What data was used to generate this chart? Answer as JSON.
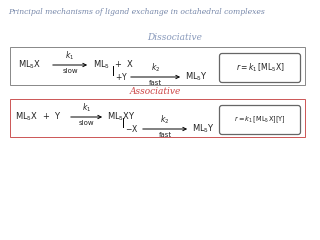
{
  "title": "Principal mechanisms of ligand exchange in octahedral complexes",
  "title_color": "#7788aa",
  "title_fontsize": 5.5,
  "dissociative_label": "Dissociative",
  "associative_label": "Associative",
  "dissociative_label_color": "#8899bb",
  "associative_label_color": "#cc4444",
  "box1_edgecolor": "#888888",
  "box2_edgecolor": "#cc5555",
  "rate_box_edgecolor": "#666666",
  "text_color": "#222222"
}
